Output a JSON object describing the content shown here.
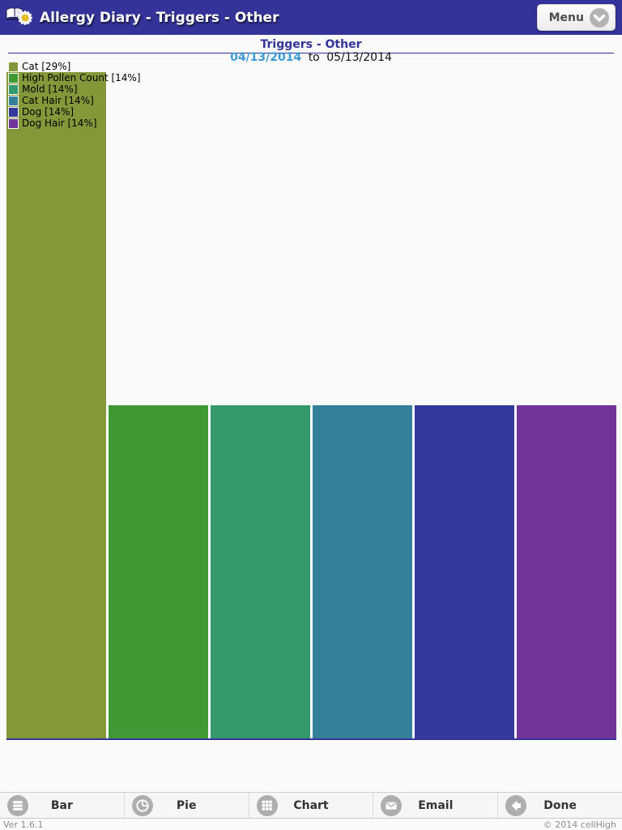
{
  "header": {
    "title": "Allergy Diary - Triggers - Other",
    "menu_label": "Menu"
  },
  "subtitle": {
    "date_separator": "to"
  },
  "chart_data": {
    "type": "bar",
    "title": "Triggers - Other",
    "date_range_start": "04/13/2014",
    "date_range_end": "05/13/2014",
    "categories": [
      "Cat",
      "High Pollen Count",
      "Mold",
      "Cat Hair",
      "Dog",
      "Dog Hair"
    ],
    "percents": [
      29,
      14,
      14,
      14,
      14,
      14
    ],
    "counts": [
      2,
      1,
      1,
      1,
      1,
      1
    ],
    "colors": [
      "#84983a",
      "#3f9a33",
      "#349a6c",
      "#34809b",
      "#34389b",
      "#72339b"
    ],
    "legend_labels": [
      "Cat [29%]",
      "High Pollen Count [14%]",
      "Mold [14%]",
      "Cat Hair [14%]",
      "Dog [14%]",
      "Dog Hair [14%]"
    ],
    "legend_position": "top-left",
    "baseline_color": "#333399",
    "ylim": [
      0,
      2
    ],
    "grid": false
  },
  "toolbar": {
    "items": [
      {
        "label": "Bar",
        "icon": "bar-rows-icon"
      },
      {
        "label": "Pie",
        "icon": "pie-chart-icon"
      },
      {
        "label": "Chart",
        "icon": "grid-icon"
      },
      {
        "label": "Email",
        "icon": "envelope-icon"
      },
      {
        "label": "Done",
        "icon": "back-arrow-icon"
      }
    ]
  },
  "footer": {
    "version": "Ver 1.6.1",
    "copyright": "© 2014 cellHigh"
  }
}
